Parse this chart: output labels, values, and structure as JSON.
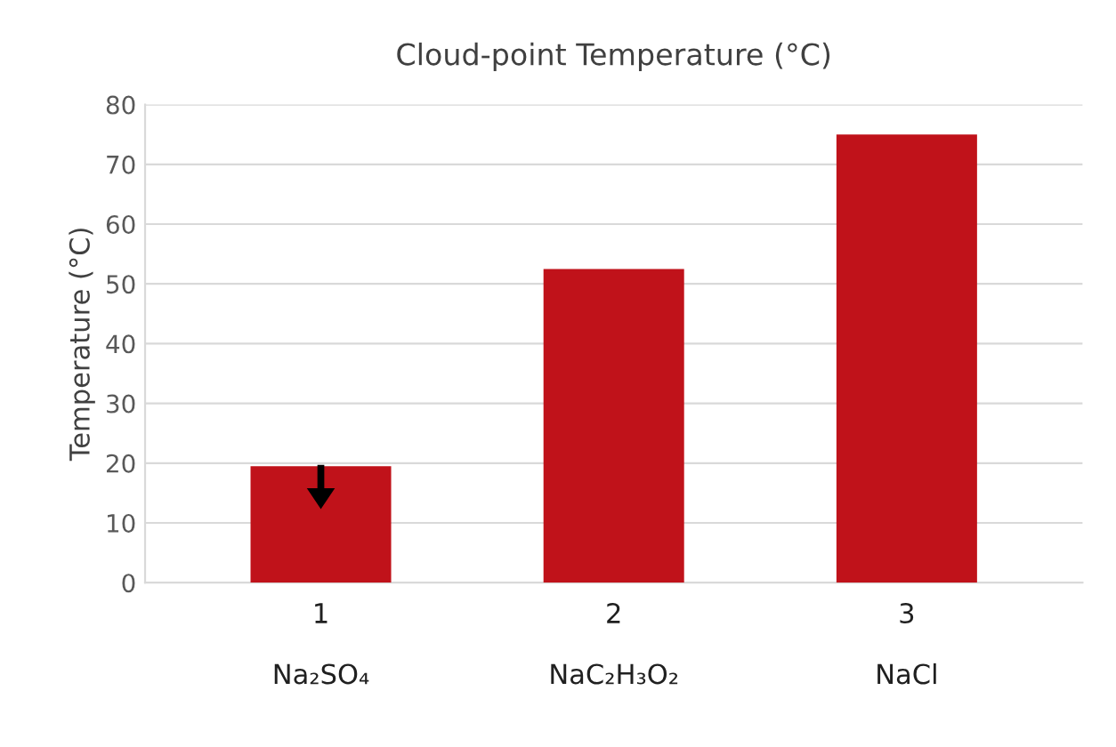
{
  "chart_data": {
    "type": "bar",
    "title": "Cloud-point Temperature (°C)",
    "ylabel": "Temperature (°C)",
    "categories": [
      "1\n\nNa₂SO₄",
      "2\n\nNaC₂H₃O₂",
      "3\n\nNaCl"
    ],
    "values": [
      19.5,
      52.5,
      75
    ],
    "color": "#c0121a",
    "ylim": [
      0,
      80
    ],
    "yticks": [
      0,
      10,
      20,
      30,
      40,
      50,
      60,
      70,
      80
    ],
    "grid": "y",
    "legend": false
  }
}
